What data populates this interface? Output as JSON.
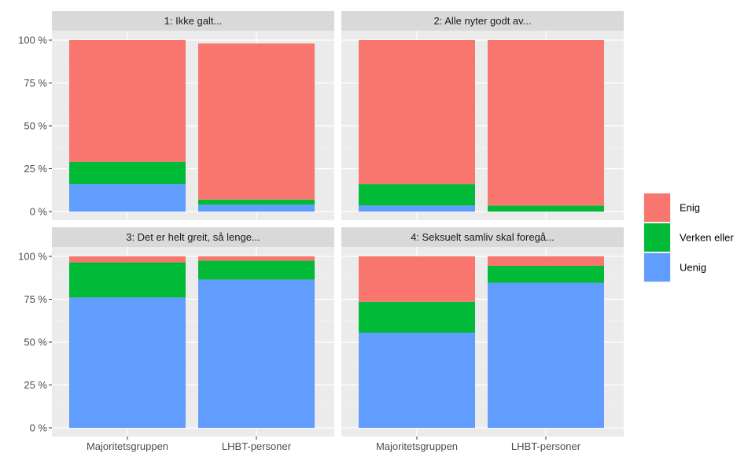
{
  "chart_data": {
    "type": "bar",
    "stacked": true,
    "categories": [
      "Majoritetsgruppen",
      "LHBT-personer"
    ],
    "y_ticks": [
      "0 %",
      "25 %",
      "50 %",
      "75 %",
      "100 %"
    ],
    "ylim": [
      0,
      1
    ],
    "legend_position": "right",
    "grid": true,
    "legend": [
      {
        "name": "Enig",
        "color": "#F8766D"
      },
      {
        "name": "Verken eller",
        "color": "#00BA38"
      },
      {
        "name": "Uenig",
        "color": "#619CFF"
      }
    ],
    "panels": [
      {
        "title": "1: Ikke galt...",
        "series": [
          {
            "name": "Uenig",
            "values": [
              0.16,
              0.04
            ]
          },
          {
            "name": "Verken eller",
            "values": [
              0.13,
              0.03
            ]
          },
          {
            "name": "Enig",
            "values": [
              0.71,
              0.91
            ]
          }
        ]
      },
      {
        "title": "2: Alle nyter godt av...",
        "series": [
          {
            "name": "Uenig",
            "values": [
              0.035,
              0.0
            ]
          },
          {
            "name": "Verken eller",
            "values": [
              0.125,
              0.035
            ]
          },
          {
            "name": "Enig",
            "values": [
              0.84,
              0.965
            ]
          }
        ]
      },
      {
        "title": "3: Det er helt greit, så lenge...",
        "series": [
          {
            "name": "Uenig",
            "values": [
              0.76,
              0.865
            ]
          },
          {
            "name": "Verken eller",
            "values": [
              0.205,
              0.11
            ]
          },
          {
            "name": "Enig",
            "values": [
              0.035,
              0.025
            ]
          }
        ]
      },
      {
        "title": "4: Seksuelt samliv skal foregå...",
        "series": [
          {
            "name": "Uenig",
            "values": [
              0.555,
              0.845
            ]
          },
          {
            "name": "Verken eller",
            "values": [
              0.18,
              0.1
            ]
          },
          {
            "name": "Enig",
            "values": [
              0.265,
              0.055
            ]
          }
        ]
      }
    ]
  }
}
